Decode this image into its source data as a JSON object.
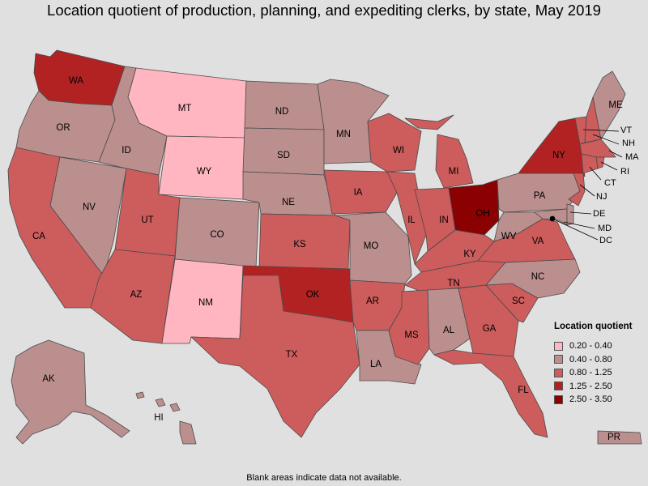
{
  "title": "Location quotient of production, planning, and expediting clerks, by state, May 2019",
  "footnote": "Blank areas indicate data not available.",
  "colors": {
    "background": "#e0e0e0",
    "border": "#4a4a4a",
    "bin_0_20_0_40": "#ffb6c1",
    "bin_0_40_0_80": "#bc8f8f",
    "bin_0_80_1_25": "#cd5c5c",
    "bin_1_25_2_50": "#b22222",
    "bin_2_50_3_50": "#8b0000"
  },
  "legend": {
    "title": "Location quotient",
    "items": [
      {
        "label": "0.20 - 0.40",
        "color": "#ffb6c1"
      },
      {
        "label": "0.40 - 0.80",
        "color": "#bc8f8f"
      },
      {
        "label": "0.80 - 1.25",
        "color": "#cd5c5c"
      },
      {
        "label": "1.25 - 2.50",
        "color": "#b22222"
      },
      {
        "label": "2.50 - 3.50",
        "color": "#8b0000"
      }
    ]
  },
  "states": [
    {
      "abbr": "WA",
      "bin": "1.25 - 2.50"
    },
    {
      "abbr": "OR",
      "bin": "0.40 - 0.80"
    },
    {
      "abbr": "CA",
      "bin": "0.80 - 1.25"
    },
    {
      "abbr": "NV",
      "bin": "0.40 - 0.80"
    },
    {
      "abbr": "ID",
      "bin": "0.40 - 0.80"
    },
    {
      "abbr": "MT",
      "bin": "0.20 - 0.40"
    },
    {
      "abbr": "WY",
      "bin": "0.20 - 0.40"
    },
    {
      "abbr": "UT",
      "bin": "0.80 - 1.25"
    },
    {
      "abbr": "AZ",
      "bin": "0.80 - 1.25"
    },
    {
      "abbr": "CO",
      "bin": "0.40 - 0.80"
    },
    {
      "abbr": "NM",
      "bin": "0.20 - 0.40"
    },
    {
      "abbr": "ND",
      "bin": "0.40 - 0.80"
    },
    {
      "abbr": "SD",
      "bin": "0.40 - 0.80"
    },
    {
      "abbr": "NE",
      "bin": "0.40 - 0.80"
    },
    {
      "abbr": "KS",
      "bin": "0.80 - 1.25"
    },
    {
      "abbr": "OK",
      "bin": "1.25 - 2.50"
    },
    {
      "abbr": "TX",
      "bin": "0.80 - 1.25"
    },
    {
      "abbr": "MN",
      "bin": "0.40 - 0.80"
    },
    {
      "abbr": "IA",
      "bin": "0.80 - 1.25"
    },
    {
      "abbr": "MO",
      "bin": "0.40 - 0.80"
    },
    {
      "abbr": "AR",
      "bin": "0.80 - 1.25"
    },
    {
      "abbr": "LA",
      "bin": "0.40 - 0.80"
    },
    {
      "abbr": "WI",
      "bin": "0.80 - 1.25"
    },
    {
      "abbr": "IL",
      "bin": "0.80 - 1.25"
    },
    {
      "abbr": "MI",
      "bin": "0.80 - 1.25"
    },
    {
      "abbr": "IN",
      "bin": "0.80 - 1.25"
    },
    {
      "abbr": "OH",
      "bin": "2.50 - 3.50"
    },
    {
      "abbr": "KY",
      "bin": "0.80 - 1.25"
    },
    {
      "abbr": "TN",
      "bin": "0.80 - 1.25"
    },
    {
      "abbr": "MS",
      "bin": "0.80 - 1.25"
    },
    {
      "abbr": "AL",
      "bin": "0.40 - 0.80"
    },
    {
      "abbr": "GA",
      "bin": "0.80 - 1.25"
    },
    {
      "abbr": "FL",
      "bin": "0.80 - 1.25"
    },
    {
      "abbr": "SC",
      "bin": "0.80 - 1.25"
    },
    {
      "abbr": "NC",
      "bin": "0.40 - 0.80"
    },
    {
      "abbr": "VA",
      "bin": "0.80 - 1.25"
    },
    {
      "abbr": "WV",
      "bin": "0.40 - 0.80"
    },
    {
      "abbr": "PA",
      "bin": "0.40 - 0.80"
    },
    {
      "abbr": "NY",
      "bin": "1.25 - 2.50"
    },
    {
      "abbr": "VT",
      "bin": "0.80 - 1.25"
    },
    {
      "abbr": "NH",
      "bin": "0.80 - 1.25"
    },
    {
      "abbr": "ME",
      "bin": "0.40 - 0.80"
    },
    {
      "abbr": "MA",
      "bin": "0.80 - 1.25"
    },
    {
      "abbr": "RI",
      "bin": "0.80 - 1.25"
    },
    {
      "abbr": "CT",
      "bin": "0.80 - 1.25"
    },
    {
      "abbr": "NJ",
      "bin": "0.80 - 1.25"
    },
    {
      "abbr": "DE",
      "bin": "0.40 - 0.80"
    },
    {
      "abbr": "MD",
      "bin": "0.40 - 0.80"
    },
    {
      "abbr": "DC",
      "bin": "0.40 - 0.80"
    },
    {
      "abbr": "AK",
      "bin": "0.40 - 0.80"
    },
    {
      "abbr": "HI",
      "bin": "0.40 - 0.80"
    },
    {
      "abbr": "PR",
      "bin": "0.40 - 0.80"
    }
  ]
}
